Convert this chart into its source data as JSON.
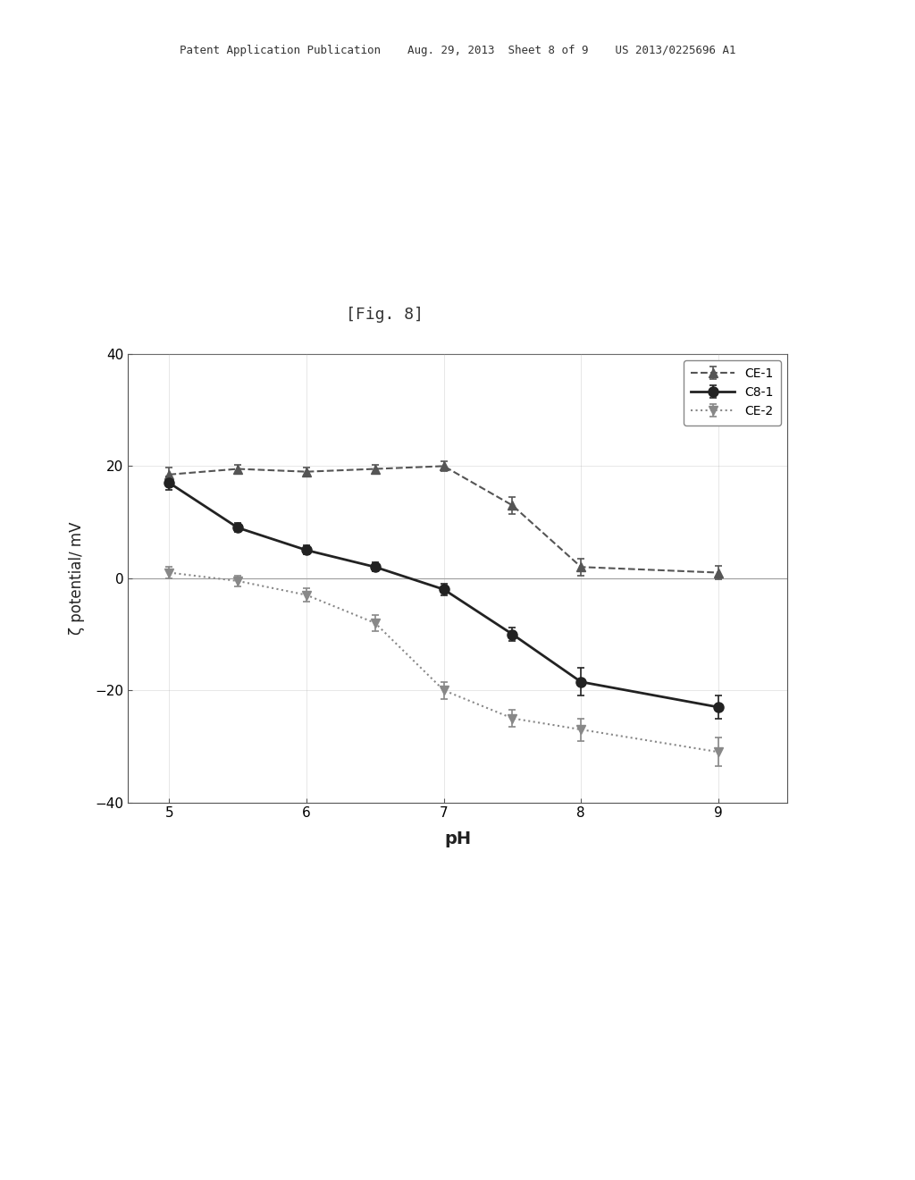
{
  "title": "[Fig. 8]",
  "xlabel": "pH",
  "ylabel": "ζ potential/ mV",
  "xlim": [
    4.7,
    9.5
  ],
  "ylim": [
    -40,
    40
  ],
  "xticks": [
    5,
    6,
    7,
    8,
    9
  ],
  "yticks": [
    -40,
    -20,
    0,
    20,
    40
  ],
  "series": [
    {
      "label": "CE-1",
      "x": [
        5,
        5.5,
        6,
        6.5,
        7,
        7.5,
        8,
        9
      ],
      "y": [
        18.5,
        19.5,
        19.0,
        19.5,
        20.0,
        13.0,
        2.0,
        1.0
      ],
      "yerr": [
        1.2,
        0.8,
        0.8,
        0.8,
        0.9,
        1.5,
        1.5,
        1.2
      ],
      "color": "#555555",
      "linestyle": "--",
      "marker": "^",
      "linewidth": 1.5,
      "markersize": 7
    },
    {
      "label": "C8-1",
      "x": [
        5,
        5.5,
        6,
        6.5,
        7,
        7.5,
        8,
        9
      ],
      "y": [
        17.0,
        9.0,
        5.0,
        2.0,
        -2.0,
        -10.0,
        -18.5,
        -23.0
      ],
      "yerr": [
        1.2,
        0.8,
        0.8,
        0.8,
        1.0,
        1.2,
        2.5,
        2.0
      ],
      "color": "#222222",
      "linestyle": "-",
      "marker": "o",
      "linewidth": 2.0,
      "markersize": 8
    },
    {
      "label": "CE-2",
      "x": [
        5,
        5.5,
        6,
        6.5,
        7,
        7.5,
        8,
        9
      ],
      "y": [
        1.0,
        -0.5,
        -3.0,
        -8.0,
        -20.0,
        -25.0,
        -27.0,
        -31.0
      ],
      "yerr": [
        1.0,
        1.0,
        1.2,
        1.5,
        1.5,
        1.5,
        2.0,
        2.5
      ],
      "color": "#888888",
      "linestyle": ":",
      "marker": "v",
      "linewidth": 1.5,
      "markersize": 7
    }
  ],
  "background_color": "#ffffff",
  "header_text": "Patent Application Publication    Aug. 29, 2013  Sheet 8 of 9    US 2013/0225696 A1",
  "fig_label": "[Fig. 8]"
}
